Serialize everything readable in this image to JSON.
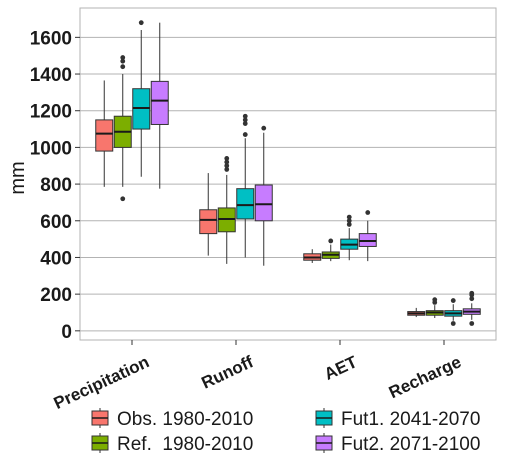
{
  "chart_data": {
    "type": "boxplot",
    "ylabel": "mm",
    "ylim": [
      -50,
      1760
    ],
    "yticks": [
      0,
      200,
      400,
      600,
      800,
      1000,
      1200,
      1400,
      1600
    ],
    "ytick_labels": [
      "0",
      "200",
      "400",
      "600",
      "800",
      "1000",
      "1200",
      "1400",
      "1600"
    ],
    "categories": [
      "Precipitation",
      "Runoff",
      "AET",
      "Recharge"
    ],
    "grid": true,
    "legend_position": "bottom",
    "series": [
      {
        "name": "Obs. 1980-2010",
        "color": "#F8766D",
        "boxes": [
          {
            "whisker_low": 785,
            "q1": 980,
            "median": 1075,
            "q3": 1150,
            "whisker_high": 1365,
            "outliers": []
          },
          {
            "whisker_low": 410,
            "q1": 530,
            "median": 605,
            "q3": 660,
            "whisker_high": 860,
            "outliers": []
          },
          {
            "whisker_low": 370,
            "q1": 385,
            "median": 400,
            "q3": 420,
            "whisker_high": 445,
            "outliers": []
          },
          {
            "whisker_low": 75,
            "q1": 85,
            "median": 95,
            "q3": 105,
            "whisker_high": 125,
            "outliers": []
          }
        ]
      },
      {
        "name": "Ref.  1980-2010",
        "color": "#7CAE00",
        "boxes": [
          {
            "whisker_low": 785,
            "q1": 1000,
            "median": 1085,
            "q3": 1170,
            "whisker_high": 1400,
            "outliers": [
              720,
              1440,
              1470,
              1490
            ]
          },
          {
            "whisker_low": 365,
            "q1": 540,
            "median": 610,
            "q3": 670,
            "whisker_high": 850,
            "outliers": [
              880,
              900,
              920,
              940
            ]
          },
          {
            "whisker_low": 380,
            "q1": 395,
            "median": 415,
            "q3": 430,
            "whisker_high": 470,
            "outliers": [
              490
            ]
          },
          {
            "whisker_low": 70,
            "q1": 85,
            "median": 100,
            "q3": 110,
            "whisker_high": 140,
            "outliers": [
              155,
              170
            ]
          }
        ]
      },
      {
        "name": "Fut1. 2041-2070",
        "color": "#00BFC4",
        "boxes": [
          {
            "whisker_low": 840,
            "q1": 1100,
            "median": 1215,
            "q3": 1320,
            "whisker_high": 1640,
            "outliers": [
              1680
            ]
          },
          {
            "whisker_low": 400,
            "q1": 610,
            "median": 685,
            "q3": 775,
            "whisker_high": 1050,
            "outliers": [
              1070,
              1130,
              1150,
              1170
            ]
          },
          {
            "whisker_low": 385,
            "q1": 445,
            "median": 470,
            "q3": 500,
            "whisker_high": 560,
            "outliers": [
              580,
              600,
              620
            ]
          },
          {
            "whisker_low": 55,
            "q1": 80,
            "median": 95,
            "q3": 110,
            "whisker_high": 145,
            "outliers": [
              40,
              165
            ]
          }
        ]
      },
      {
        "name": "Fut2. 2071-2100",
        "color": "#C77CFF",
        "boxes": [
          {
            "whisker_low": 775,
            "q1": 1125,
            "median": 1255,
            "q3": 1360,
            "whisker_high": 1680,
            "outliers": []
          },
          {
            "whisker_low": 355,
            "q1": 600,
            "median": 690,
            "q3": 795,
            "whisker_high": 1080,
            "outliers": [
              1105
            ]
          },
          {
            "whisker_low": 380,
            "q1": 460,
            "median": 490,
            "q3": 530,
            "whisker_high": 600,
            "outliers": [
              645
            ]
          },
          {
            "whisker_low": 60,
            "q1": 90,
            "median": 105,
            "q3": 120,
            "whisker_high": 150,
            "outliers": [
              40,
              175,
              195,
              205
            ]
          }
        ]
      }
    ]
  }
}
